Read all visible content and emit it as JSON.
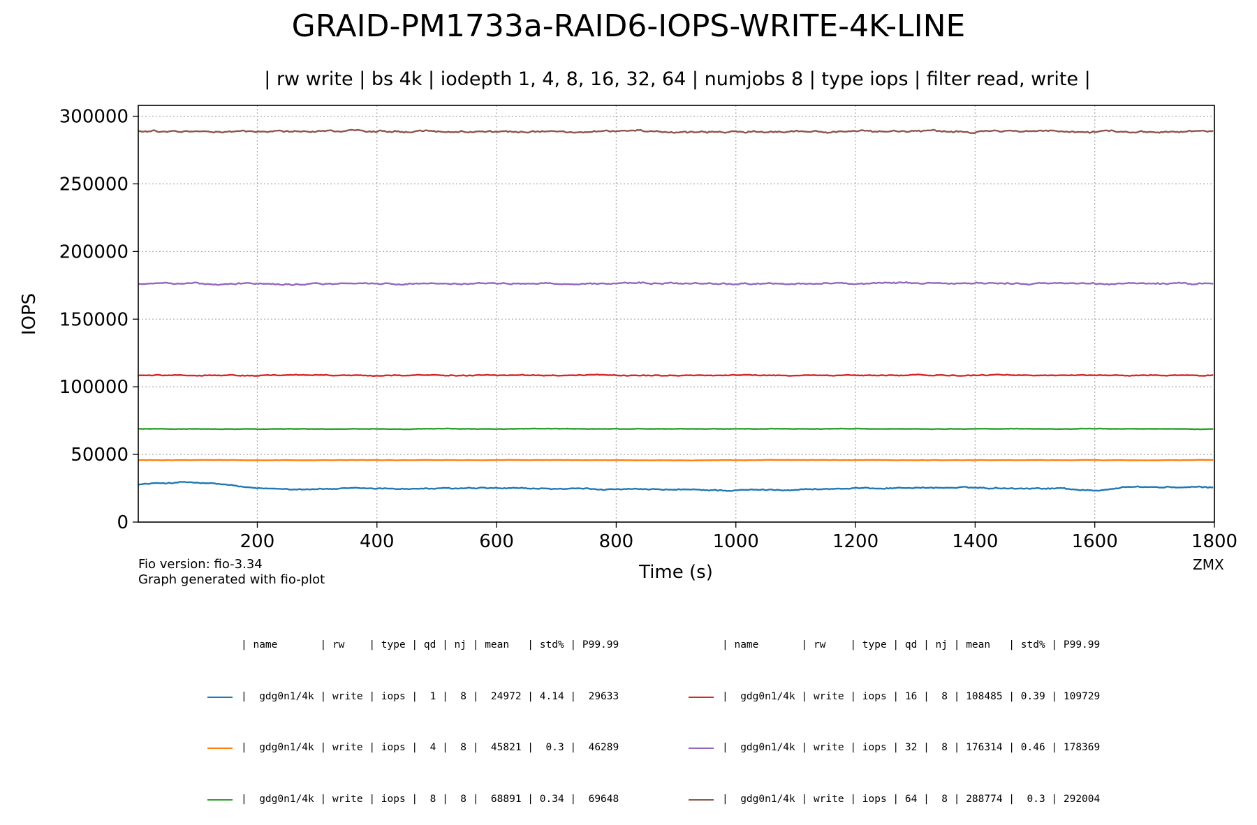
{
  "chart_data": {
    "type": "line",
    "title": "GRAID-PM1733a-RAID6-IOPS-WRITE-4K-LINE",
    "subtitle": "| rw write | bs 4k | iodepth 1, 4, 8, 16, 32, 64 | numjobs 8 | type iops | filter read, write |",
    "xlabel": "Time (s)",
    "ylabel": "IOPS",
    "xlim": [
      1,
      1800
    ],
    "ylim": [
      0,
      308000
    ],
    "xticks": [
      200,
      400,
      600,
      800,
      1000,
      1200,
      1400,
      1600,
      1800
    ],
    "yticks": [
      0,
      50000,
      100000,
      150000,
      200000,
      250000,
      300000
    ],
    "grid": true,
    "series": [
      {
        "name": "gdg0n1/4k qd 1",
        "color": "#1f77b4",
        "mean": 24972,
        "noise": 600,
        "segments": [
          [
            1,
            28000
          ],
          [
            80,
            29500
          ],
          [
            150,
            27500
          ],
          [
            200,
            24500
          ],
          [
            600,
            24800
          ],
          [
            1000,
            23500
          ],
          [
            1300,
            25500
          ],
          [
            1550,
            25000
          ],
          [
            1600,
            23000
          ],
          [
            1650,
            26000
          ],
          [
            1800,
            25500
          ]
        ]
      },
      {
        "name": "gdg0n1/4k qd 4",
        "color": "#ff7f0e",
        "mean": 45821,
        "noise": 150,
        "segments": [
          [
            1,
            45800
          ],
          [
            1800,
            45800
          ]
        ]
      },
      {
        "name": "gdg0n1/4k qd 8",
        "color": "#2ca02c",
        "mean": 68891,
        "noise": 220,
        "segments": [
          [
            1,
            68900
          ],
          [
            1800,
            68900
          ]
        ]
      },
      {
        "name": "gdg0n1/4k qd 16",
        "color": "#d62728",
        "mean": 108485,
        "noise": 450,
        "segments": [
          [
            1,
            108500
          ],
          [
            1800,
            108500
          ]
        ]
      },
      {
        "name": "gdg0n1/4k qd 32",
        "color": "#9467bd",
        "mean": 176314,
        "noise": 700,
        "segments": [
          [
            1,
            176300
          ],
          [
            1800,
            176300
          ]
        ]
      },
      {
        "name": "gdg0n1/4k qd 64",
        "color": "#8c564b",
        "mean": 288774,
        "noise": 900,
        "segments": [
          [
            1,
            288800
          ],
          [
            1800,
            288800
          ]
        ]
      }
    ]
  },
  "footnotes": {
    "fio_version": "Fio version: fio-3.34",
    "generator": "Graph generated with fio-plot",
    "corner": "ZMX"
  },
  "legend": {
    "header": "| name       | rw    | type | qd | nj | mean   | std% | P99.99",
    "rows": [
      {
        "color": "#1f77b4",
        "text": "|  gdg0n1/4k | write | iops |  1 |  8 |  24972 | 4.14 |  29633"
      },
      {
        "color": "#ff7f0e",
        "text": "|  gdg0n1/4k | write | iops |  4 |  8 |  45821 |  0.3 |  46289"
      },
      {
        "color": "#2ca02c",
        "text": "|  gdg0n1/4k | write | iops |  8 |  8 |  68891 | 0.34 |  69648"
      },
      {
        "color": "#d62728",
        "text": "|  gdg0n1/4k | write | iops | 16 |  8 | 108485 | 0.39 | 109729"
      },
      {
        "color": "#9467bd",
        "text": "|  gdg0n1/4k | write | iops | 32 |  8 | 176314 | 0.46 | 178369"
      },
      {
        "color": "#8c564b",
        "text": "|  gdg0n1/4k | write | iops | 64 |  8 | 288774 |  0.3 | 292004"
      }
    ]
  }
}
